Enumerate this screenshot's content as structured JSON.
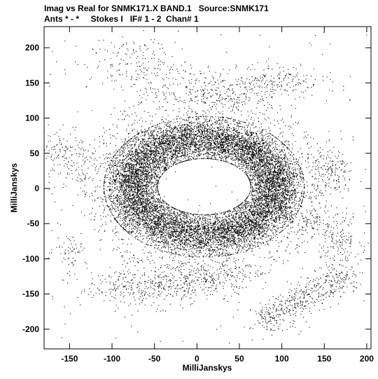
{
  "title_line1": "Imag vs Real for SNMK171.X BAND.1   Source:SNMK171",
  "title_line2": "Ants * - *     Stokes I   IF# 1 - 2  Chan# 1",
  "chart_data": {
    "type": "scatter",
    "xlabel": "MilliJanskys",
    "ylabel": "MilliJanskys",
    "xlim": [
      -180,
      205
    ],
    "ylim": [
      -228,
      230
    ],
    "x_ticks": [
      -150,
      -100,
      -50,
      0,
      50,
      100,
      150,
      200
    ],
    "y_ticks": [
      -200,
      -150,
      -100,
      -50,
      0,
      50,
      100,
      150,
      200
    ],
    "grid": false,
    "point_color": "#000000",
    "structures": [
      {
        "kind": "ring",
        "center": [
          8,
          3
        ],
        "rx_inner": 55,
        "rx_outer": 118,
        "ry_inner": 40,
        "ry_outer": 100,
        "n": 16000
      },
      {
        "kind": "ring_halo",
        "center": [
          8,
          3
        ],
        "rx_inner": 110,
        "rx_outer": 150,
        "ry_inner": 95,
        "ry_outer": 140,
        "n": 900
      },
      {
        "kind": "cluster",
        "center": [
          -70,
          175
        ],
        "spread": [
          30,
          18
        ],
        "n": 180
      },
      {
        "kind": "cluster",
        "center": [
          20,
          140
        ],
        "spread": [
          40,
          15
        ],
        "n": 260
      },
      {
        "kind": "cluster",
        "center": [
          95,
          155
        ],
        "spread": [
          25,
          12
        ],
        "n": 160
      },
      {
        "kind": "cluster",
        "center": [
          -155,
          45
        ],
        "spread": [
          14,
          22
        ],
        "n": 160
      },
      {
        "kind": "cluster",
        "center": [
          160,
          22
        ],
        "spread": [
          12,
          18
        ],
        "n": 160
      },
      {
        "kind": "cluster",
        "center": [
          165,
          -70
        ],
        "spread": [
          14,
          18
        ],
        "n": 170
      },
      {
        "kind": "cluster",
        "center": [
          135,
          -45
        ],
        "spread": [
          8,
          10
        ],
        "n": 60
      },
      {
        "kind": "cluster",
        "center": [
          -60,
          -140
        ],
        "spread": [
          40,
          14
        ],
        "n": 400
      },
      {
        "kind": "cluster",
        "center": [
          20,
          -125
        ],
        "spread": [
          25,
          12
        ],
        "n": 200
      },
      {
        "kind": "band",
        "from": [
          75,
          -190
        ],
        "to": [
          175,
          -120
        ],
        "width": 18,
        "n": 500
      },
      {
        "kind": "cluster",
        "center": [
          -150,
          -85
        ],
        "spread": [
          10,
          12
        ],
        "n": 60
      },
      {
        "kind": "uniform",
        "xrange": [
          -175,
          200
        ],
        "yrange": [
          -225,
          225
        ],
        "n": 250
      }
    ]
  }
}
